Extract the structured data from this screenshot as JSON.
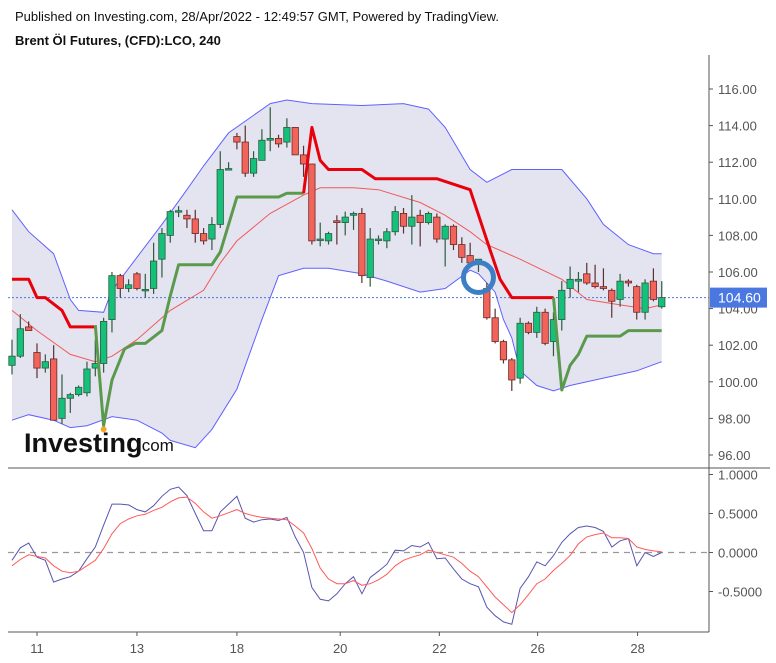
{
  "header": {
    "published": "Published on Investing.com, 28/Apr/2022 - 12:49:57 GMT, Powered by TradingView.",
    "title": "Brent Öl Futures, (CFD):LCO, 240"
  },
  "logo": {
    "text": "Investing",
    "suffix": ".com"
  },
  "colors": {
    "up": "#14c07a",
    "down": "#f2645a",
    "band_line": "#6060ff",
    "band_fill": "#e4e4f1",
    "basis": "#f05a5a",
    "trend_down": "#e8000b",
    "trend_up": "#5b9a4d",
    "osc_fast": "#5656b0",
    "osc_slow": "#ff5a5a",
    "last_price_bg": "#4a78e0"
  },
  "chart_data": [
    {
      "type": "candlestick",
      "pane": "price",
      "ylim": [
        95,
        118
      ],
      "yticks": [
        96,
        98,
        100,
        102,
        104,
        106,
        108,
        110,
        112,
        114,
        116
      ],
      "ytick_labels": [
        "96.00",
        "98.00",
        "100.00",
        "102.00",
        "104.00",
        "106.00",
        "108.00",
        "110.00",
        "112.00",
        "114.00",
        "116.00"
      ],
      "xticks": [
        {
          "label": "11",
          "bar": 3
        },
        {
          "label": "13",
          "bar": 15
        },
        {
          "label": "18",
          "bar": 27
        },
        {
          "label": "20",
          "bar": 39.4
        },
        {
          "label": "22",
          "bar": 51.3
        },
        {
          "label": "26",
          "bar": 63.1
        },
        {
          "label": "28",
          "bar": 75.1
        }
      ],
      "last_price": 104.6,
      "last_price_label": "104.60",
      "ohlc": [
        [
          100.9,
          102.3,
          100.4,
          101.4
        ],
        [
          101.4,
          103.7,
          101.3,
          102.9
        ],
        [
          103.0,
          103.3,
          102.8,
          102.8
        ],
        [
          101.6,
          102.1,
          100.2,
          100.75
        ],
        [
          100.75,
          101.5,
          100.5,
          101.1
        ],
        [
          101.25,
          102.0,
          97.9,
          97.9
        ],
        [
          98.0,
          100.4,
          97.7,
          99.1
        ],
        [
          99.1,
          99.4,
          98.3,
          99.3
        ],
        [
          99.3,
          99.8,
          99.2,
          99.7
        ],
        [
          99.4,
          101.1,
          99.2,
          100.7
        ],
        [
          100.75,
          102.3,
          100.3,
          101.0
        ],
        [
          101.0,
          103.5,
          100.5,
          103.3
        ],
        [
          103.4,
          106.0,
          102.7,
          105.8
        ],
        [
          105.8,
          105.9,
          104.6,
          105.1
        ],
        [
          105.1,
          105.6,
          104.9,
          105.3
        ],
        [
          105.9,
          106.0,
          105.0,
          105.1
        ],
        [
          105.0,
          105.9,
          104.6,
          105.05
        ],
        [
          105.1,
          107.6,
          104.8,
          106.6
        ],
        [
          106.7,
          108.4,
          105.7,
          108.1
        ],
        [
          108.0,
          109.4,
          107.6,
          109.3
        ],
        [
          109.3,
          109.6,
          109.0,
          109.35
        ],
        [
          109.1,
          109.4,
          108.4,
          108.9
        ],
        [
          108.9,
          109.4,
          107.6,
          108.1
        ],
        [
          108.1,
          108.4,
          107.5,
          107.7
        ],
        [
          107.8,
          109.0,
          107.2,
          108.6
        ],
        [
          108.6,
          112.6,
          108.4,
          111.6
        ],
        [
          111.6,
          112.0,
          111.6,
          111.65
        ],
        [
          113.4,
          113.6,
          112.7,
          113.1
        ],
        [
          113.1,
          114.0,
          111.2,
          111.4
        ],
        [
          111.4,
          112.6,
          111.2,
          112.2
        ],
        [
          112.1,
          113.8,
          112.1,
          113.2
        ],
        [
          113.2,
          115.0,
          112.6,
          113.3
        ],
        [
          113.3,
          113.5,
          112.8,
          113.0
        ],
        [
          113.1,
          114.4,
          112.8,
          113.9
        ],
        [
          113.9,
          113.9,
          112.4,
          112.4
        ],
        [
          112.4,
          112.9,
          111.2,
          111.9
        ],
        [
          111.9,
          111.9,
          107.5,
          107.7
        ],
        [
          107.75,
          108.7,
          107.4,
          107.8
        ],
        [
          107.7,
          108.2,
          107.5,
          108.1
        ],
        [
          108.8,
          109.1,
          107.5,
          108.7
        ],
        [
          108.7,
          109.3,
          108.0,
          109.0
        ],
        [
          109.1,
          109.3,
          108.3,
          109.2
        ],
        [
          109.2,
          109.5,
          105.4,
          105.8
        ],
        [
          105.7,
          108.4,
          105.2,
          107.8
        ],
        [
          107.75,
          108.0,
          107.5,
          107.8
        ],
        [
          107.7,
          108.4,
          107.3,
          108.2
        ],
        [
          108.2,
          109.6,
          108.0,
          109.3
        ],
        [
          109.2,
          109.5,
          108.1,
          108.5
        ],
        [
          108.5,
          110.2,
          107.5,
          109.0
        ],
        [
          109.1,
          109.4,
          107.4,
          108.7
        ],
        [
          108.7,
          109.3,
          108.6,
          109.2
        ],
        [
          109.0,
          109.2,
          107.6,
          107.8
        ],
        [
          107.8,
          108.6,
          106.3,
          108.5
        ],
        [
          108.5,
          108.6,
          107.2,
          107.5
        ],
        [
          107.5,
          107.9,
          106.5,
          106.8
        ],
        [
          106.9,
          107.6,
          106.4,
          106.5
        ],
        [
          106.6,
          106.7,
          106.0,
          106.7
        ],
        [
          105.1,
          105.4,
          103.4,
          103.5
        ],
        [
          103.5,
          104.0,
          102.1,
          102.2
        ],
        [
          102.2,
          102.3,
          101.0,
          101.2
        ],
        [
          101.2,
          101.3,
          99.5,
          100.1
        ],
        [
          100.2,
          103.5,
          99.9,
          103.2
        ],
        [
          103.2,
          103.3,
          102.6,
          102.7
        ],
        [
          102.7,
          104.1,
          102.4,
          103.8
        ],
        [
          103.8,
          104.0,
          102.0,
          102.1
        ],
        [
          102.2,
          103.8,
          101.4,
          103.4
        ],
        [
          103.4,
          105.5,
          102.8,
          105.0
        ],
        [
          105.1,
          106.3,
          104.6,
          105.6
        ],
        [
          105.5,
          106.0,
          104.9,
          105.6
        ],
        [
          105.9,
          106.5,
          105.3,
          105.4
        ],
        [
          105.4,
          106.4,
          105.1,
          105.2
        ],
        [
          105.2,
          106.2,
          105.0,
          105.1
        ],
        [
          105.0,
          105.1,
          103.5,
          104.4
        ],
        [
          104.5,
          105.9,
          104.1,
          105.5
        ],
        [
          105.5,
          105.6,
          105.2,
          105.4
        ],
        [
          105.2,
          105.3,
          103.4,
          103.8
        ],
        [
          103.8,
          105.6,
          103.4,
          105.4
        ],
        [
          105.5,
          106.2,
          104.4,
          104.5
        ],
        [
          104.1,
          105.5,
          104.0,
          104.6
        ]
      ],
      "bollinger_upper": [
        [
          0,
          109.4
        ],
        [
          2,
          108.2
        ],
        [
          5,
          107.0
        ],
        [
          7,
          104.5
        ],
        [
          8,
          103.9
        ],
        [
          11,
          103.8
        ],
        [
          12,
          105.0
        ],
        [
          15,
          106.8
        ],
        [
          18,
          108.6
        ],
        [
          21,
          110.5
        ],
        [
          23,
          111.8
        ],
        [
          26,
          113.6
        ],
        [
          31,
          115.2
        ],
        [
          33,
          115.4
        ],
        [
          36,
          115.2
        ],
        [
          42,
          115.1
        ],
        [
          47,
          115.2
        ],
        [
          50,
          114.9
        ],
        [
          52,
          113.9
        ],
        [
          55,
          111.6
        ],
        [
          57,
          110.9
        ],
        [
          60,
          111.6
        ],
        [
          66,
          111.6
        ],
        [
          69,
          110.0
        ],
        [
          71,
          108.6
        ],
        [
          74,
          107.5
        ],
        [
          77,
          107.0
        ],
        [
          78,
          107.0
        ]
      ],
      "bollinger_lower": [
        [
          0,
          97.9
        ],
        [
          2,
          98.2
        ],
        [
          5,
          97.9
        ],
        [
          7,
          97.5
        ],
        [
          9,
          97.6
        ],
        [
          12,
          98.1
        ],
        [
          15,
          97.9
        ],
        [
          18,
          97.2
        ],
        [
          19,
          96.8
        ],
        [
          22,
          96.4
        ],
        [
          24,
          97.4
        ],
        [
          27,
          99.6
        ],
        [
          30,
          103.4
        ],
        [
          32,
          105.8
        ],
        [
          35,
          106.2
        ],
        [
          38,
          106.2
        ],
        [
          42,
          105.9
        ],
        [
          45,
          105.5
        ],
        [
          49,
          104.9
        ],
        [
          52,
          105.1
        ],
        [
          55,
          106.1
        ],
        [
          56,
          105.9
        ],
        [
          58,
          104.9
        ],
        [
          59,
          103.4
        ],
        [
          60,
          102.4
        ],
        [
          61,
          100.6
        ],
        [
          63,
          99.8
        ],
        [
          65,
          99.5
        ],
        [
          67,
          99.8
        ],
        [
          71,
          100.2
        ],
        [
          75,
          100.6
        ],
        [
          78,
          101.1
        ]
      ],
      "bollinger_basis": [
        [
          0,
          103.9
        ],
        [
          3,
          102.8
        ],
        [
          7,
          101.5
        ],
        [
          10,
          101.1
        ],
        [
          12,
          101.4
        ],
        [
          15,
          102.3
        ],
        [
          19,
          103.9
        ],
        [
          23,
          105.0
        ],
        [
          25,
          106.5
        ],
        [
          27,
          107.7
        ],
        [
          31,
          109.2
        ],
        [
          35,
          110.2
        ],
        [
          37,
          110.6
        ],
        [
          41,
          110.6
        ],
        [
          44,
          110.5
        ],
        [
          49,
          109.8
        ],
        [
          52,
          109.1
        ],
        [
          55,
          108.2
        ],
        [
          57,
          107.5
        ],
        [
          61,
          106.7
        ],
        [
          66,
          105.6
        ],
        [
          69,
          104.5
        ],
        [
          73,
          104.2
        ],
        [
          76,
          104.0
        ],
        [
          78,
          104.2
        ]
      ],
      "trend_segments": [
        {
          "dir": "down",
          "points": [
            [
              0,
              105.6
            ],
            [
              2,
              105.6
            ],
            [
              3,
              104.6
            ],
            [
              4,
              104.6
            ],
            [
              6,
              103.9
            ],
            [
              7,
              103.0
            ],
            [
              10,
              103.0
            ]
          ]
        },
        {
          "dir": "up",
          "points": [
            [
              10,
              103.1
            ],
            [
              11,
              97.6
            ],
            [
              12,
              100.1
            ],
            [
              13.5,
              101.8
            ],
            [
              14.8,
              102.1
            ],
            [
              16,
              102.1
            ],
            [
              18,
              102.8
            ],
            [
              19,
              104.7
            ],
            [
              20,
              106.4
            ],
            [
              24,
              106.4
            ],
            [
              25,
              107.1
            ],
            [
              27,
              110.1
            ],
            [
              32,
              110.1
            ],
            [
              33,
              110.3
            ],
            [
              35,
              110.3
            ]
          ]
        },
        {
          "dir": "down",
          "points": [
            [
              35,
              110.3
            ],
            [
              36,
              113.9
            ],
            [
              37,
              112.1
            ],
            [
              38,
              111.6
            ],
            [
              42,
              111.6
            ],
            [
              43.6,
              111.1
            ],
            [
              51,
              111.1
            ],
            [
              55,
              110.5
            ],
            [
              57.4,
              107.2
            ],
            [
              58.6,
              105.6
            ],
            [
              60,
              104.6
            ],
            [
              65,
              104.6
            ]
          ]
        },
        {
          "dir": "up",
          "points": [
            [
              65,
              104.6
            ],
            [
              66,
              99.55
            ],
            [
              67,
              100.9
            ],
            [
              68,
              101.5
            ],
            [
              69,
              102.5
            ],
            [
              73,
              102.5
            ],
            [
              74,
              102.8
            ],
            [
              78,
              102.8
            ]
          ]
        }
      ],
      "markers": [
        {
          "type": "circle",
          "bar": 56,
          "price": 105.7,
          "color": "#3d7fc4"
        },
        {
          "type": "dot",
          "bar": 11,
          "price": 97.4,
          "color": "#f5a623"
        }
      ]
    },
    {
      "type": "line",
      "pane": "oscillator",
      "ylim": [
        -1.0,
        1.05
      ],
      "yticks": [
        1.0,
        0.5,
        0.0,
        -0.5
      ],
      "ytick_labels": [
        "1.0000",
        "0.5000",
        "0.0000",
        "-0.5000"
      ],
      "zero_line": true,
      "series": [
        {
          "values": [
            -0.1,
            0.06,
            0.12,
            -0.06,
            -0.1,
            -0.38,
            -0.34,
            -0.31,
            -0.24,
            -0.08,
            0.07,
            0.35,
            0.62,
            0.62,
            0.61,
            0.55,
            0.52,
            0.6,
            0.72,
            0.81,
            0.84,
            0.73,
            0.5,
            0.28,
            0.28,
            0.52,
            0.62,
            0.72,
            0.44,
            0.39,
            0.42,
            0.43,
            0.41,
            0.45,
            0.2,
            0.0,
            -0.45,
            -0.6,
            -0.62,
            -0.53,
            -0.4,
            -0.31,
            -0.53,
            -0.32,
            -0.24,
            -0.15,
            0.03,
            0.02,
            0.09,
            0.07,
            0.13,
            -0.08,
            -0.07,
            -0.21,
            -0.34,
            -0.4,
            -0.44,
            -0.7,
            -0.81,
            -0.89,
            -0.92,
            -0.46,
            -0.31,
            -0.12,
            -0.17,
            -0.04,
            0.13,
            0.24,
            0.32,
            0.34,
            0.32,
            0.27,
            0.07,
            0.15,
            0.18,
            -0.17,
            0.0,
            -0.05,
            0.0
          ]
        },
        {
          "values": [
            -0.17,
            -0.09,
            -0.03,
            -0.05,
            -0.07,
            -0.17,
            -0.24,
            -0.26,
            -0.24,
            -0.17,
            -0.1,
            0.05,
            0.24,
            0.37,
            0.43,
            0.47,
            0.49,
            0.54,
            0.58,
            0.65,
            0.7,
            0.71,
            0.63,
            0.52,
            0.44,
            0.47,
            0.51,
            0.55,
            0.5,
            0.47,
            0.45,
            0.44,
            0.43,
            0.42,
            0.34,
            0.25,
            0.05,
            -0.2,
            -0.34,
            -0.4,
            -0.4,
            -0.36,
            -0.42,
            -0.4,
            -0.35,
            -0.28,
            -0.17,
            -0.1,
            -0.06,
            -0.03,
            0.03,
            0.0,
            -0.03,
            -0.06,
            -0.14,
            -0.24,
            -0.31,
            -0.44,
            -0.57,
            -0.67,
            -0.77,
            -0.67,
            -0.54,
            -0.4,
            -0.34,
            -0.23,
            -0.14,
            -0.04,
            0.11,
            0.2,
            0.23,
            0.25,
            0.19,
            0.19,
            0.18,
            0.07,
            0.04,
            0.02,
            0.01
          ]
        }
      ]
    }
  ]
}
